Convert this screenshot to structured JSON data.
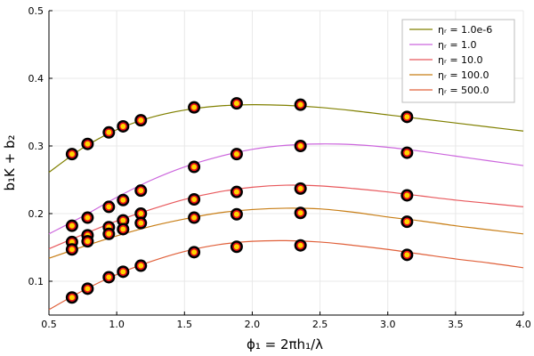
{
  "chart_data": {
    "type": "line",
    "title": "",
    "xlabel": "ϕ₁ = 2πh₁/λ",
    "ylabel": "b₁K + b₂",
    "xlim": [
      0.5,
      4.0
    ],
    "ylim": [
      0.05,
      0.5
    ],
    "xticks": [
      0.5,
      1.0,
      1.5,
      2.0,
      2.5,
      3.0,
      3.5,
      4.0
    ],
    "xtick_labels": [
      "0.5",
      "1.0",
      "1.5",
      "2.0",
      "2.5",
      "3.0",
      "3.5",
      "4.0"
    ],
    "yticks": [
      0.1,
      0.2,
      0.3,
      0.4,
      0.5
    ],
    "ytick_labels": [
      "0.1",
      "0.2",
      "0.3",
      "0.4",
      "0.5"
    ],
    "grid": true,
    "legend_position": "top-right",
    "series": [
      {
        "name": "ηᵣ = 1.0e-6",
        "color": "#808000",
        "x": [
          0.5,
          0.75,
          1.0,
          1.25,
          1.5,
          1.75,
          2.0,
          2.25,
          2.5,
          2.75,
          3.0,
          3.25,
          3.5,
          3.75,
          4.0
        ],
        "y": [
          0.261,
          0.297,
          0.324,
          0.342,
          0.353,
          0.359,
          0.361,
          0.36,
          0.357,
          0.352,
          0.346,
          0.34,
          0.334,
          0.328,
          0.322
        ],
        "points_x": [
          0.67,
          0.785,
          0.942,
          1.047,
          1.178,
          1.571,
          1.885,
          2.356,
          3.142
        ],
        "points_y": [
          0.288,
          0.303,
          0.32,
          0.329,
          0.338,
          0.357,
          0.363,
          0.361,
          0.343
        ]
      },
      {
        "name": "ηᵣ = 1.0",
        "color": "#cc66dd",
        "x": [
          0.5,
          0.75,
          1.0,
          1.25,
          1.5,
          1.75,
          2.0,
          2.25,
          2.5,
          2.75,
          3.0,
          3.25,
          3.5,
          3.75,
          4.0
        ],
        "y": [
          0.17,
          0.196,
          0.224,
          0.249,
          0.269,
          0.284,
          0.295,
          0.301,
          0.303,
          0.302,
          0.298,
          0.292,
          0.285,
          0.278,
          0.271
        ],
        "points_x": [
          0.67,
          0.785,
          0.942,
          1.047,
          1.178,
          1.571,
          1.885,
          2.356,
          3.142
        ],
        "points_y": [
          0.182,
          0.194,
          0.21,
          0.22,
          0.234,
          0.269,
          0.288,
          0.3,
          0.29
        ]
      },
      {
        "name": "ηᵣ = 10.0",
        "color": "#e8585c",
        "x": [
          0.5,
          0.75,
          1.0,
          1.25,
          1.5,
          1.75,
          2.0,
          2.25,
          2.5,
          2.75,
          3.0,
          3.25,
          3.5,
          3.75,
          4.0
        ],
        "y": [
          0.148,
          0.169,
          0.189,
          0.206,
          0.221,
          0.232,
          0.239,
          0.242,
          0.241,
          0.237,
          0.232,
          0.226,
          0.22,
          0.215,
          0.21
        ],
        "points_x": [
          0.67,
          0.785,
          0.942,
          1.047,
          1.178,
          1.571,
          1.885,
          2.356,
          3.142
        ],
        "points_y": [
          0.158,
          0.168,
          0.18,
          0.19,
          0.2,
          0.221,
          0.232,
          0.237,
          0.227
        ]
      },
      {
        "name": "ηᵣ = 100.0",
        "color": "#c87e16",
        "x": [
          0.5,
          0.75,
          1.0,
          1.25,
          1.5,
          1.75,
          2.0,
          2.25,
          2.5,
          2.75,
          3.0,
          3.25,
          3.5,
          3.75,
          4.0
        ],
        "y": [
          0.134,
          0.151,
          0.167,
          0.181,
          0.192,
          0.201,
          0.206,
          0.208,
          0.207,
          0.202,
          0.195,
          0.189,
          0.182,
          0.176,
          0.17
        ],
        "points_x": [
          0.67,
          0.785,
          0.942,
          1.047,
          1.178,
          1.571,
          1.885,
          2.356,
          3.142
        ],
        "points_y": [
          0.147,
          0.159,
          0.17,
          0.177,
          0.186,
          0.194,
          0.199,
          0.201,
          0.188
        ]
      },
      {
        "name": "ηᵣ = 500.0",
        "color": "#e0603a",
        "x": [
          0.5,
          0.75,
          1.0,
          1.25,
          1.5,
          1.75,
          2.0,
          2.25,
          2.5,
          2.75,
          3.0,
          3.25,
          3.5,
          3.75,
          4.0
        ],
        "y": [
          0.058,
          0.086,
          0.11,
          0.129,
          0.144,
          0.154,
          0.159,
          0.16,
          0.158,
          0.153,
          0.147,
          0.14,
          0.133,
          0.127,
          0.12
        ],
        "points_x": [
          0.67,
          0.785,
          0.942,
          1.047,
          1.178,
          1.571,
          1.885,
          2.356,
          3.142
        ],
        "points_y": [
          0.076,
          0.089,
          0.106,
          0.114,
          0.123,
          0.143,
          0.151,
          0.153,
          0.139
        ]
      }
    ]
  }
}
